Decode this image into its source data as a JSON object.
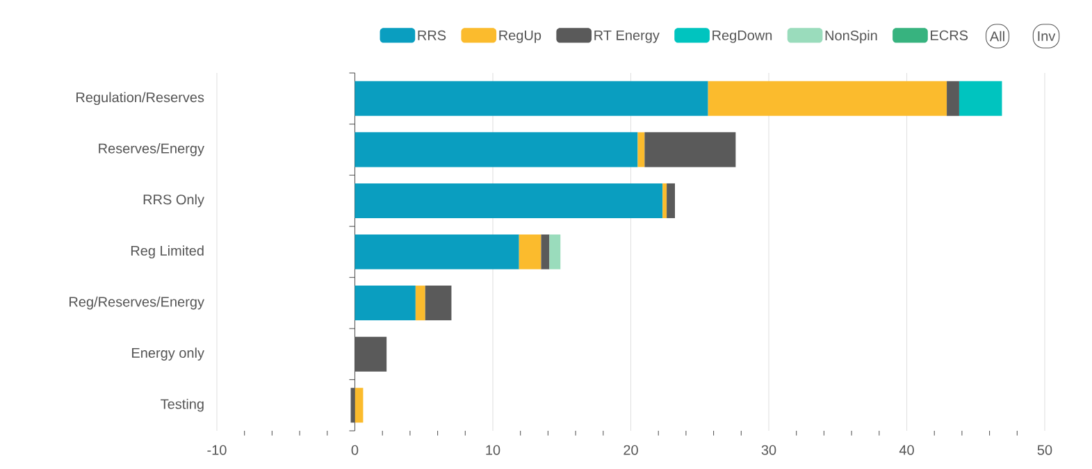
{
  "chart_data": {
    "type": "bar",
    "orientation": "horizontal",
    "stacked": true,
    "categories": [
      "Regulation/Reserves",
      "Reserves/Energy",
      "RRS Only",
      "Reg Limited",
      "Reg/Reserves/Energy",
      "Energy only",
      "Testing"
    ],
    "series": [
      {
        "name": "RRS",
        "color": "#0a9ec0",
        "values": [
          25.6,
          20.5,
          22.3,
          11.9,
          4.4,
          null,
          null
        ]
      },
      {
        "name": "RegUp",
        "color": "#fbbb2d",
        "values": [
          17.3,
          0.5,
          0.3,
          1.6,
          0.7,
          null,
          0.6
        ]
      },
      {
        "name": "RT Energy",
        "color": "#5a5a5a",
        "values": [
          0.9,
          6.6,
          0.6,
          0.6,
          1.9,
          2.3,
          -0.3
        ]
      },
      {
        "name": "RegDown",
        "color": "#00c4bf",
        "values": [
          3.1,
          null,
          null,
          null,
          null,
          null,
          null
        ]
      },
      {
        "name": "NonSpin",
        "color": "#9adcbc",
        "values": [
          null,
          null,
          null,
          0.8,
          null,
          null,
          null
        ]
      },
      {
        "name": "ECRS",
        "color": "#37b37f",
        "values": [
          null,
          null,
          null,
          null,
          null,
          null,
          null
        ]
      }
    ],
    "xlim": [
      -10,
      50
    ],
    "xticks": [
      -10,
      0,
      10,
      20,
      30,
      40,
      50
    ],
    "grid": "x",
    "legend": "top right",
    "annotations": [
      "All",
      "Inv"
    ]
  }
}
